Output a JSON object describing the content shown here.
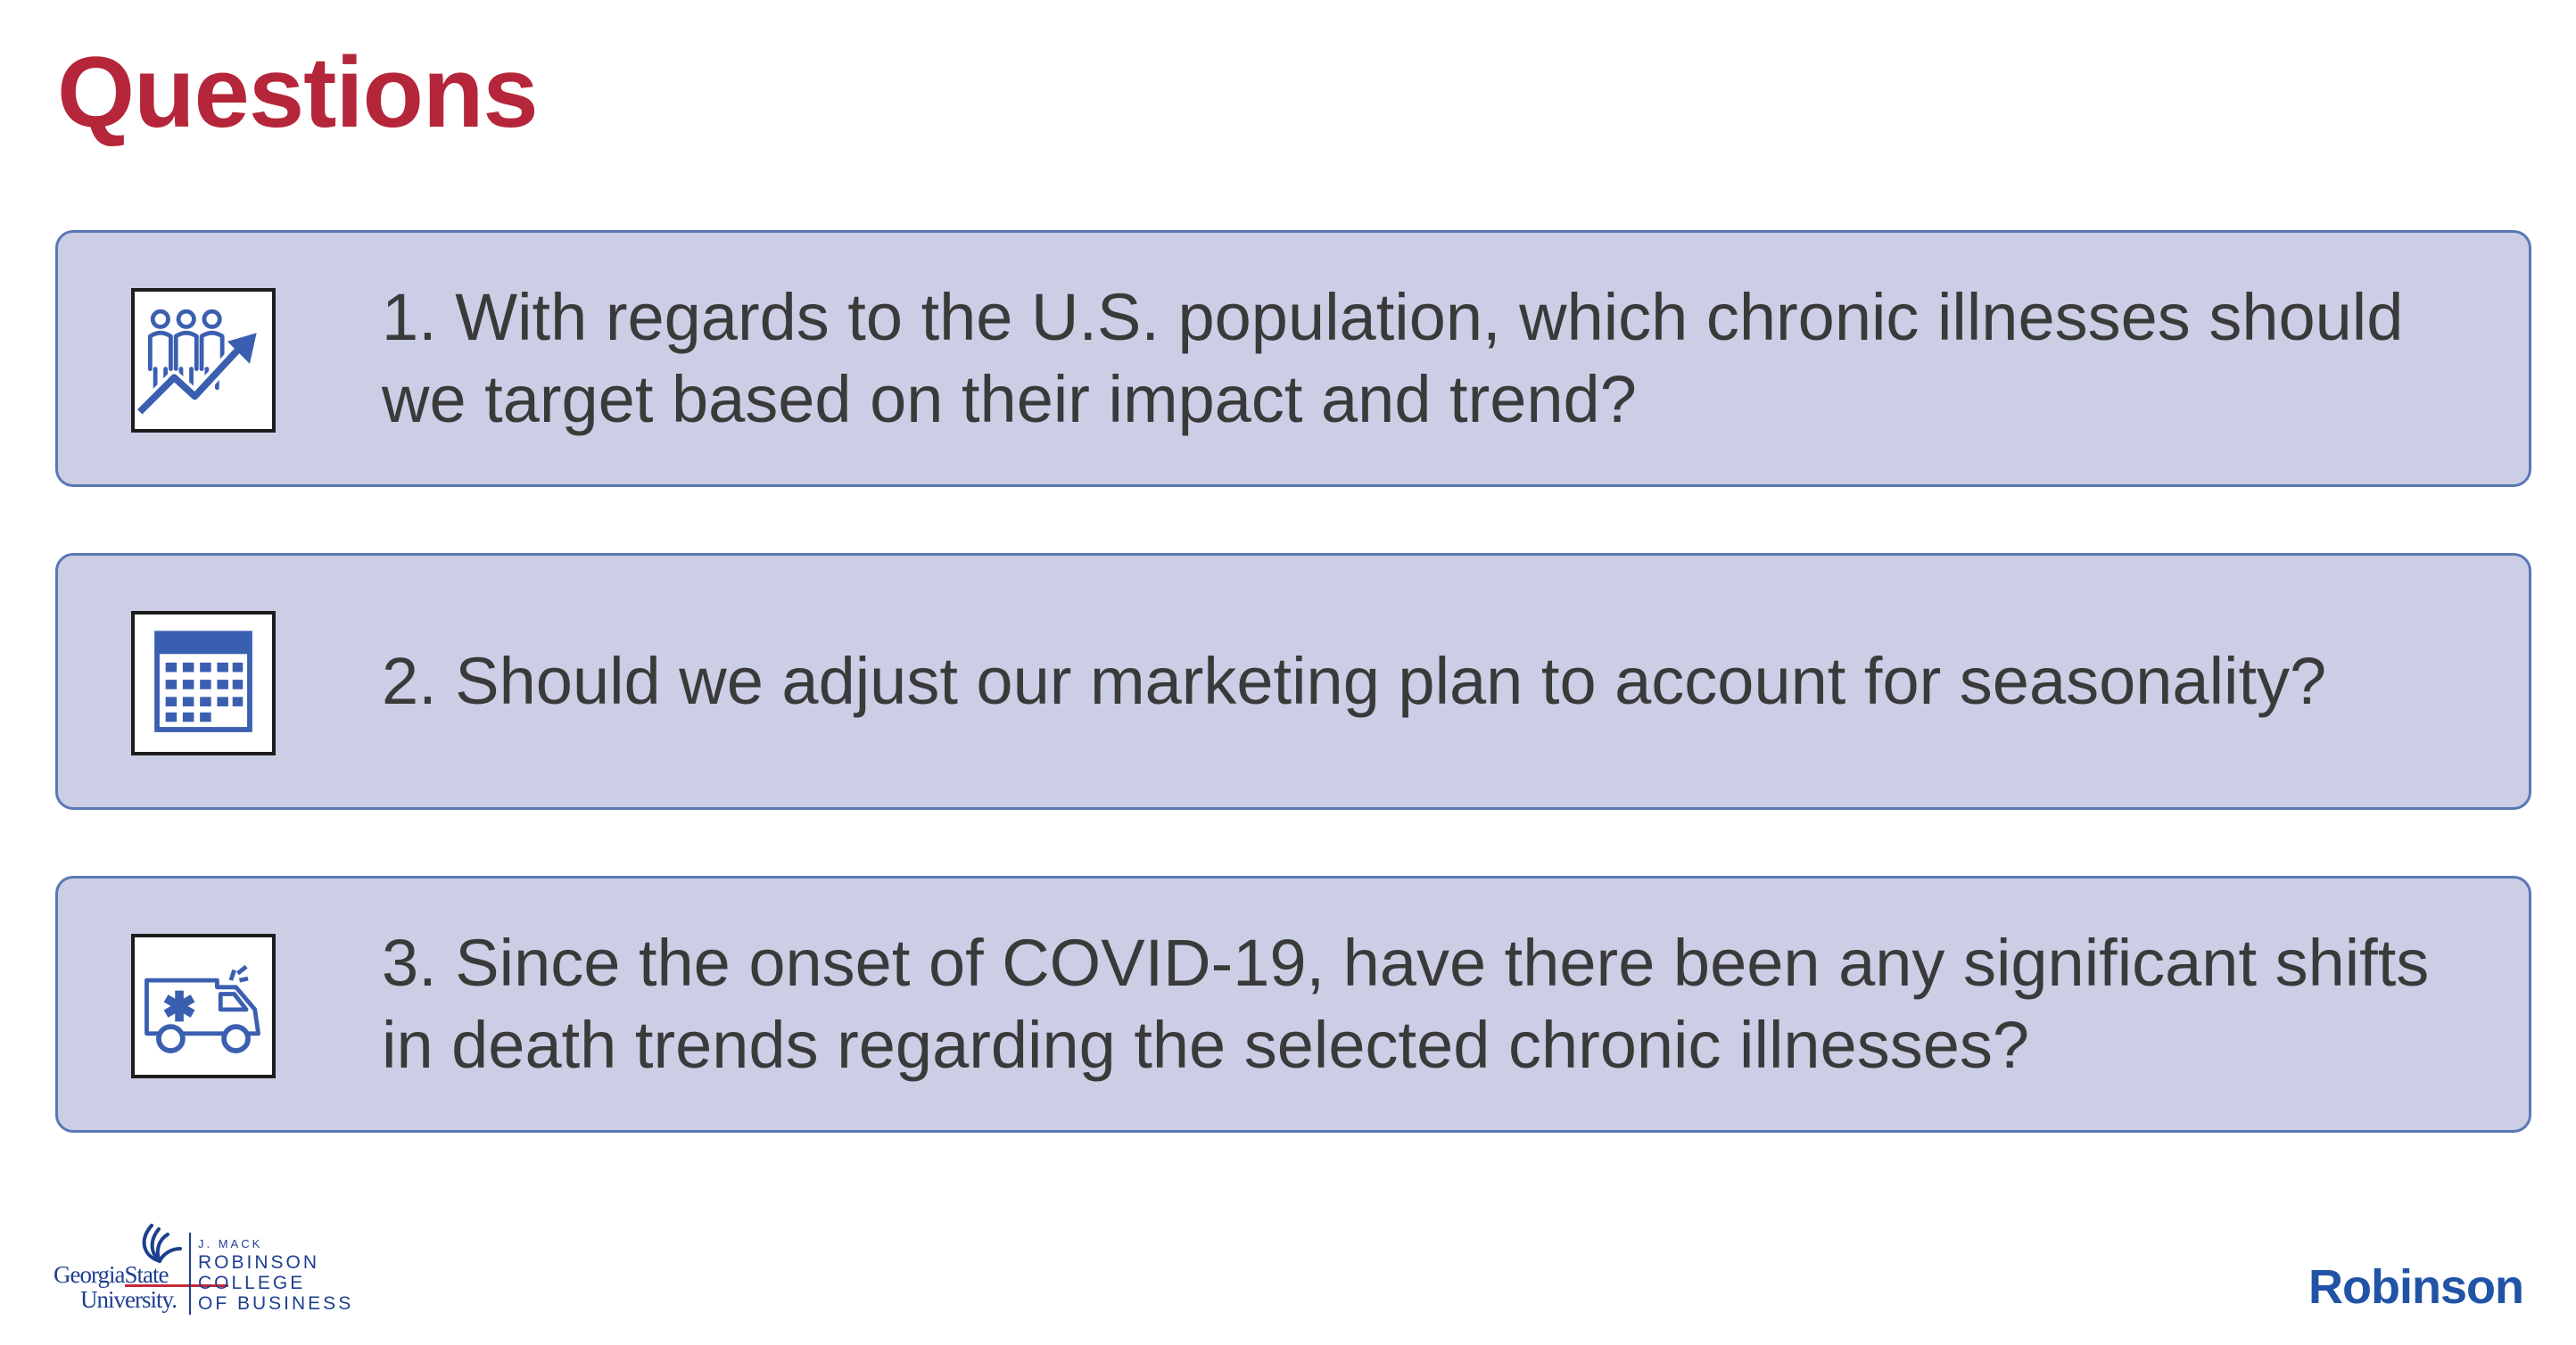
{
  "title": "Questions",
  "questions": [
    {
      "text": "1. With regards to the U.S. population, which chronic illnesses should we target based on their impact and trend?",
      "icon": "population-trend-icon"
    },
    {
      "text": "2. Should we adjust our marketing plan to account for seasonality?",
      "icon": "calendar-icon"
    },
    {
      "text": "3. Since the onset of COVID-19, have there been any significant shifts in death trends regarding the selected chronic illnesses?",
      "icon": "ambulance-icon"
    }
  ],
  "footer": {
    "gsu_line1": "GeorgiaState",
    "gsu_line2": "University.",
    "college_line1": "J. MACK",
    "college_line2": "ROBINSON",
    "college_line3": "COLLEGE",
    "college_line4": "OF BUSINESS",
    "brand": "Robinson"
  },
  "colors": {
    "title": "#b5263a",
    "box_fill": "#cbcee4",
    "box_border": "#5a78b5",
    "icon_blue": "#3b5fb0",
    "brand_blue": "#2154a6"
  }
}
